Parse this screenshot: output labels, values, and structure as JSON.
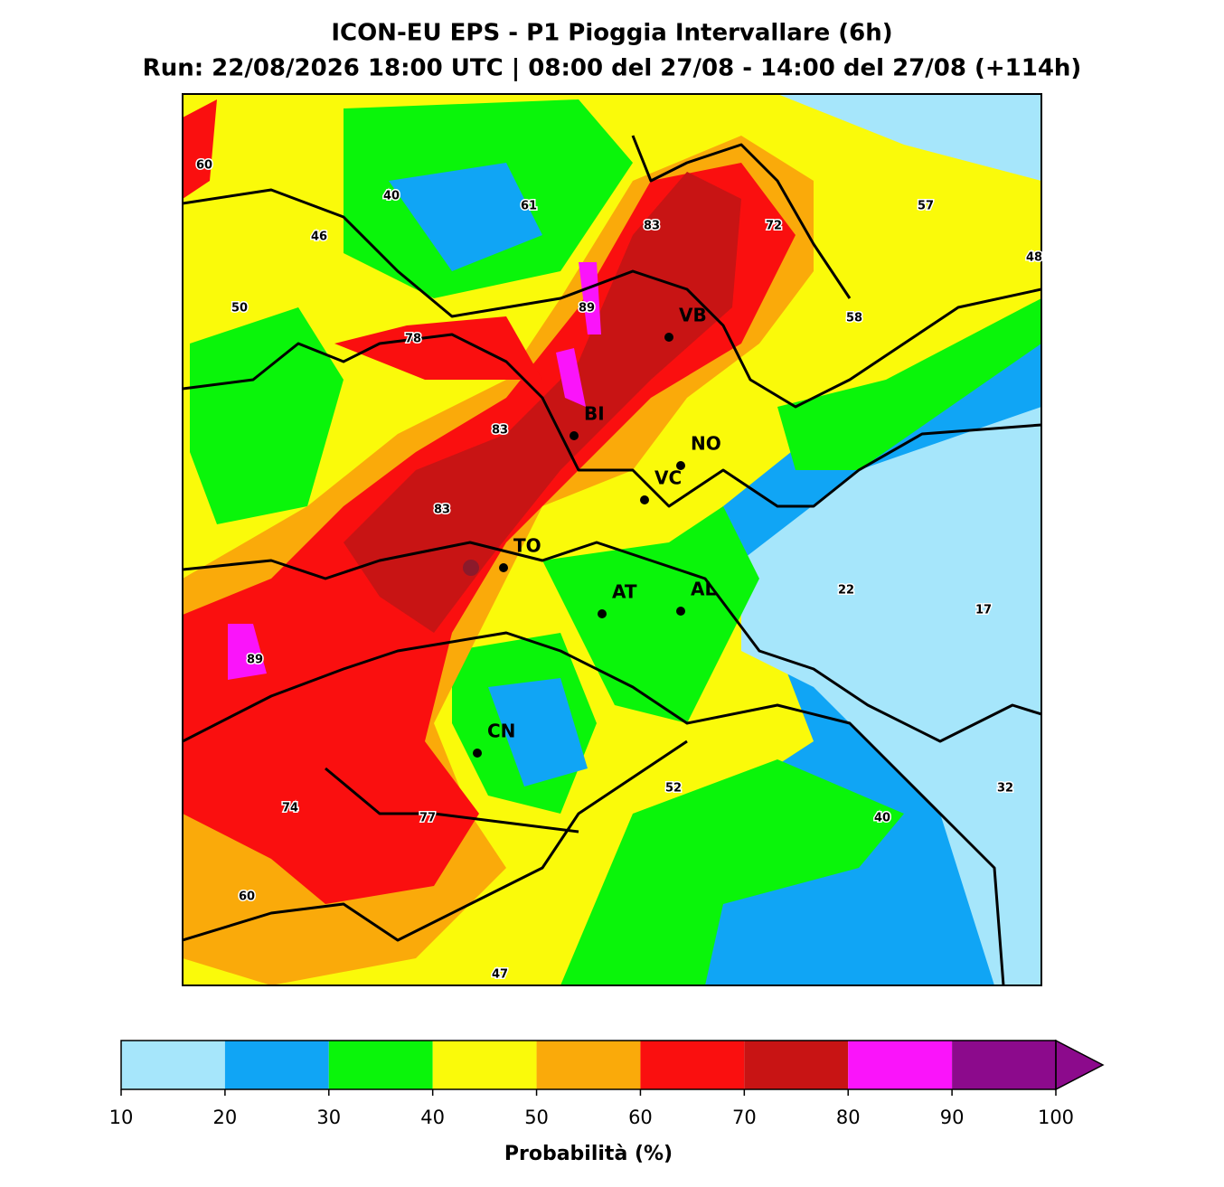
{
  "title": "ICON-EU EPS - P1 Pioggia Intervallare (6h)",
  "subtitle": "Run: 22/08/2026 18:00 UTC | 08:00 del 27/08 - 14:00 del 27/08 (+114h)",
  "cities": [
    "VB",
    "BI",
    "NO",
    "VC",
    "TO",
    "AT",
    "AL",
    "CN"
  ],
  "value_labels": [
    60,
    40,
    61,
    83,
    72,
    57,
    46,
    48,
    50,
    89,
    58,
    78,
    83,
    83,
    89,
    22,
    17,
    52,
    32,
    74,
    77,
    40,
    60,
    47
  ],
  "colorbar": {
    "label": "Probabilità (%)",
    "ticks": [
      10,
      20,
      30,
      40,
      50,
      60,
      70,
      80,
      90,
      100
    ],
    "colors": [
      "#a6e6fb",
      "#10a5f5",
      "#0af50a",
      "#fafa0a",
      "#faaa0a",
      "#fa0f0f",
      "#c81414",
      "#fa14fa",
      "#8c0a8c"
    ]
  }
}
